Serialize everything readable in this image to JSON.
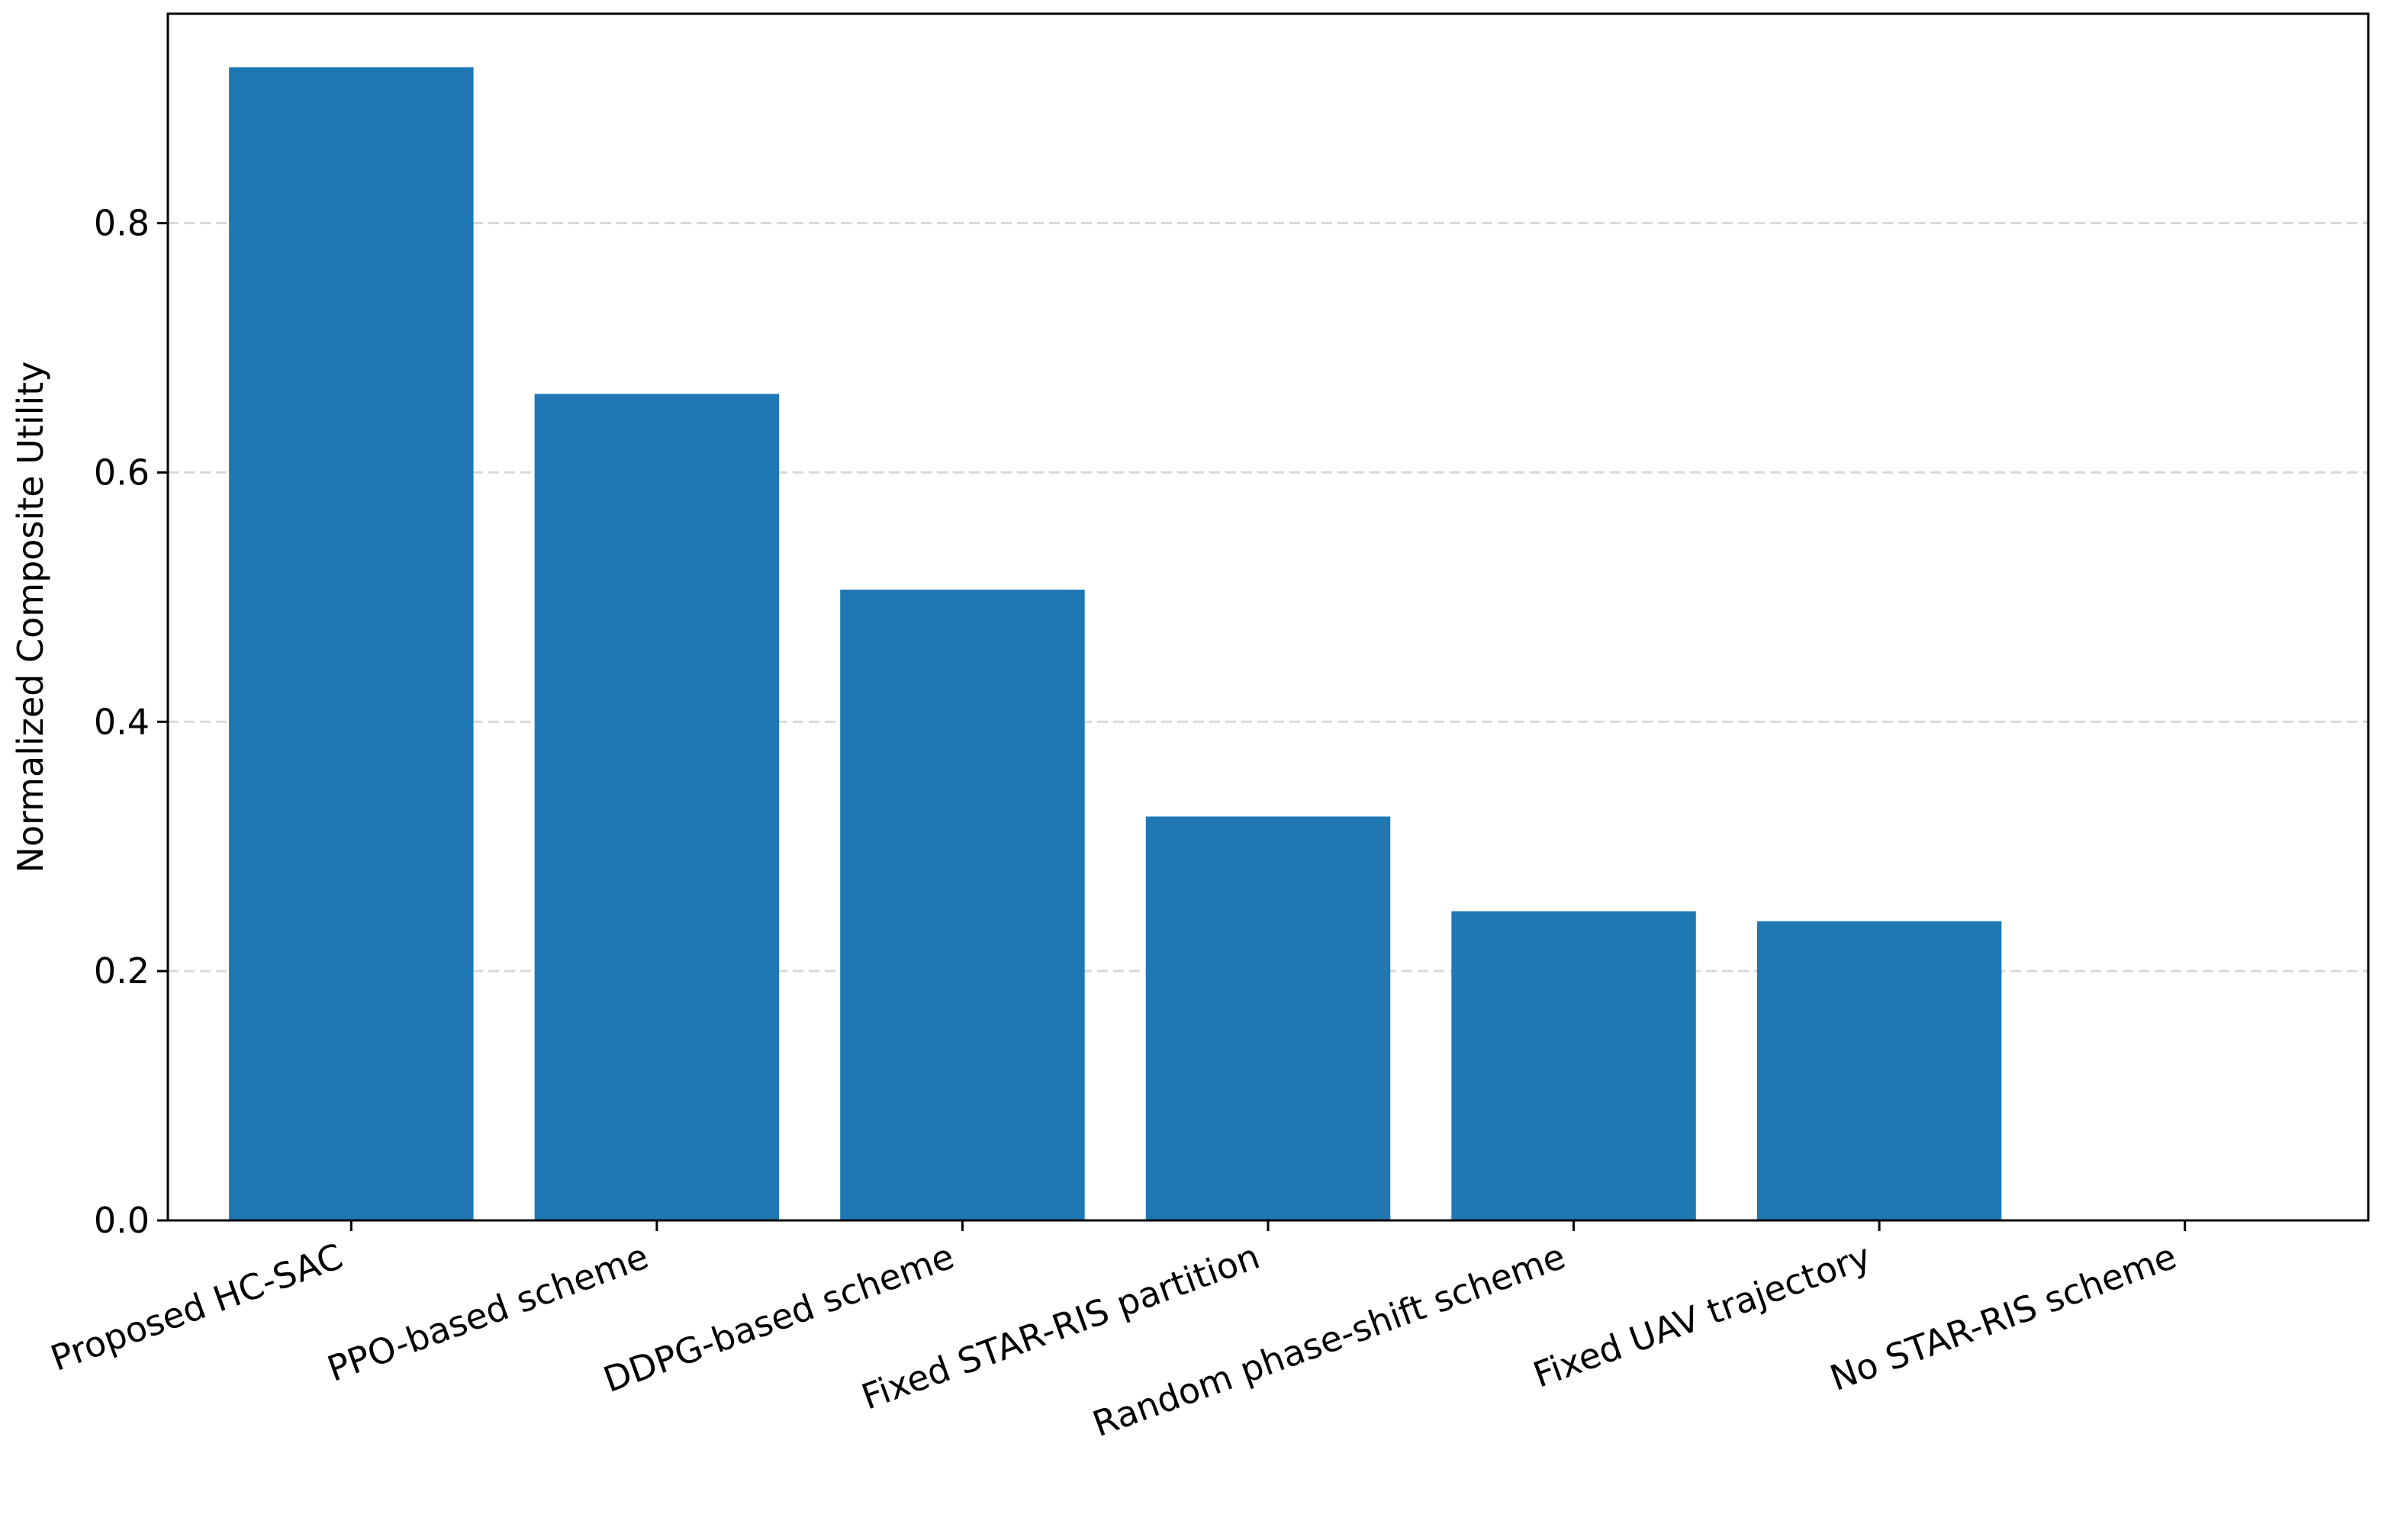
{
  "chart_data": {
    "type": "bar",
    "title": "",
    "xlabel": "",
    "ylabel": "Normalized Composite Utility",
    "categories": [
      "Proposed HC-SAC",
      "PPO-based scheme",
      "DDPG-based scheme",
      "Fixed STAR-RIS partition",
      "Random phase-shift scheme",
      "Fixed UAV trajectory",
      "No STAR-RIS scheme"
    ],
    "values": [
      0.925,
      0.663,
      0.506,
      0.324,
      0.248,
      0.24,
      0.0
    ],
    "ylim": [
      0,
      0.968
    ],
    "yticks": [
      0.0,
      0.2,
      0.4,
      0.6,
      0.8
    ],
    "ytick_labels": [
      "0.0",
      "0.2",
      "0.4",
      "0.6",
      "0.8"
    ],
    "grid": "y-dashed",
    "bar_color": "#1f77b4",
    "grid_color": "#d9d9d9"
  }
}
